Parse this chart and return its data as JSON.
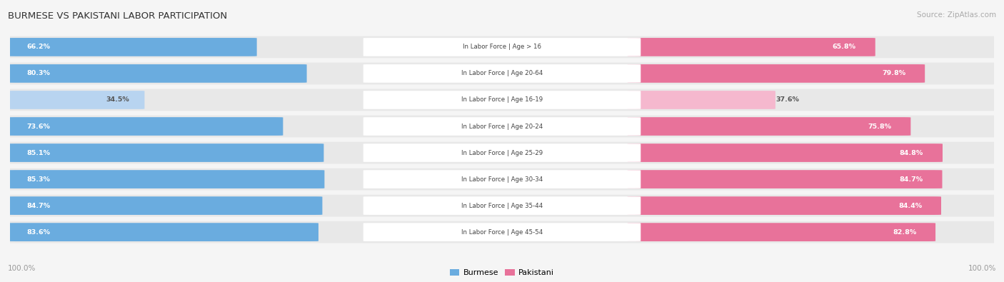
{
  "title": "BURMESE VS PAKISTANI LABOR PARTICIPATION",
  "source": "Source: ZipAtlas.com",
  "categories": [
    "In Labor Force | Age > 16",
    "In Labor Force | Age 20-64",
    "In Labor Force | Age 16-19",
    "In Labor Force | Age 20-24",
    "In Labor Force | Age 25-29",
    "In Labor Force | Age 30-34",
    "In Labor Force | Age 35-44",
    "In Labor Force | Age 45-54"
  ],
  "burmese": [
    66.2,
    80.3,
    34.5,
    73.6,
    85.1,
    85.3,
    84.7,
    83.6
  ],
  "pakistani": [
    65.8,
    79.8,
    37.6,
    75.8,
    84.8,
    84.7,
    84.4,
    82.8
  ],
  "burmese_color_full": "#6aacdf",
  "burmese_color_light": "#b8d4f0",
  "pakistani_color_full": "#e8729a",
  "pakistani_color_light": "#f5b8ce",
  "row_bg_color": "#e8e8e8",
  "title_color": "#333333",
  "source_color": "#aaaaaa",
  "value_color_white": "#ffffff",
  "value_color_dark": "#555555",
  "bg_color": "#f5f5f5",
  "max_value": 100.0,
  "light_threshold": 50.0,
  "center_label_color": "#444444",
  "bottom_label_color": "#999999"
}
